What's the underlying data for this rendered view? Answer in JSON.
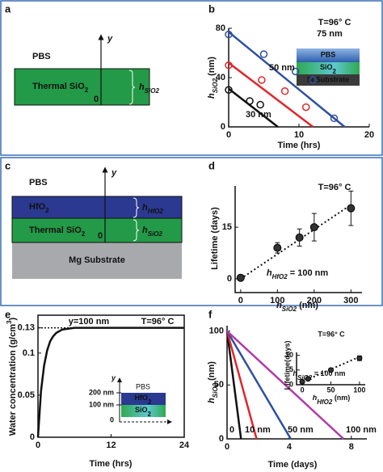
{
  "diagrams": [
    {
      "letter": "a",
      "pbs": "PBS",
      "layer": [
        "Thermal SiO",
        {
          "sub": "2"
        }
      ],
      "axis": "y",
      "origin": "0",
      "thickness": [
        "h",
        {
          "sub": "SiO2"
        }
      ]
    },
    {
      "letter": "c",
      "pbs": "PBS",
      "layers": [
        [
          "HfO",
          {
            "sub": "2"
          }
        ],
        [
          "Thermal SiO",
          {
            "sub": "2"
          }
        ]
      ],
      "substrate": "Mg Substrate",
      "axis": "y",
      "origin": "0",
      "thickness": [
        [
          "h",
          {
            "sub": "HfO2"
          }
        ],
        [
          "h",
          {
            "sub": "SiO2"
          }
        ]
      ]
    }
  ],
  "chart_data": [
    {
      "letter": "b",
      "type": "line",
      "x_label": "Time (hrs)",
      "y_label": [
        "h",
        {
          "sub": "SiO2"
        },
        " (nm)"
      ],
      "xlim": [
        0,
        20
      ],
      "xticks": [
        0,
        10,
        20
      ],
      "ylim": [
        0,
        80
      ],
      "yticks": [
        0,
        40,
        80
      ],
      "annotations": [
        "T=96° C"
      ],
      "series": [
        {
          "name": "75 nm",
          "color": "#2e4fa3",
          "x": [
            0,
            5,
            9.5,
            12,
            15
          ],
          "values": [
            75,
            59,
            45,
            38,
            7
          ],
          "fit_x": [
            0,
            16.5
          ],
          "fit_y": [
            77,
            0
          ]
        },
        {
          "name": "50 nm",
          "color": "#e0262b",
          "x": [
            0,
            4.7,
            8,
            11
          ],
          "values": [
            50,
            38,
            29,
            16
          ],
          "fit_x": [
            0,
            12
          ],
          "fit_y": [
            52,
            0
          ]
        },
        {
          "name": "30 nm",
          "color": "#111111",
          "x": [
            0,
            3,
            4.5
          ],
          "values": [
            30,
            21,
            18
          ],
          "fit_x": [
            0,
            7
          ],
          "fit_y": [
            31,
            0
          ]
        }
      ],
      "inset": {
        "layers": [
          "PBS",
          [
            "SiO",
            {
              "sub": "2"
            }
          ],
          "Si Substrate"
        ]
      }
    },
    {
      "letter": "d",
      "type": "scatter",
      "x_label": [
        "h",
        {
          "sub": "SiO2"
        },
        " (nm)"
      ],
      "y_label": "Lifetime (days)",
      "x": [
        0,
        100,
        160,
        200,
        300
      ],
      "values": [
        0.3,
        9,
        12,
        15,
        20.5
      ],
      "errors": [
        0,
        1.5,
        2.5,
        4,
        5
      ],
      "color": "#333333",
      "fit_x": [
        0,
        300
      ],
      "fit_y": [
        0,
        21.5
      ],
      "xlim": [
        -15,
        330
      ],
      "xticks": [
        0,
        100,
        200,
        300
      ],
      "ylim": [
        -4,
        27
      ],
      "yticks": [
        0,
        15
      ],
      "annotations": [
        "T=96° C",
        [
          "h",
          {
            "sub": "HfO2"
          },
          " = 100 nm"
        ]
      ]
    },
    {
      "letter": "e",
      "type": "line",
      "x_label": "Time (hrs)",
      "y_label": [
        "Water concentration (g/cm",
        {
          "sup": "3"
        },
        ")"
      ],
      "xlim": [
        0,
        24
      ],
      "xticks": [
        0,
        12,
        24
      ],
      "ylim": [
        0,
        0.145
      ],
      "yticks": [
        0,
        0.05,
        0.1,
        0.13
      ],
      "hline": 0.13,
      "annotations": [
        "T=96° C",
        "y=100  nm"
      ],
      "series": [
        {
          "color": "#111111",
          "x": [
            0,
            0.5,
            1,
            1.5,
            2,
            2.5,
            3,
            4,
            5,
            6,
            8,
            12,
            16,
            20,
            24
          ],
          "values": [
            0,
            0.055,
            0.085,
            0.103,
            0.114,
            0.12,
            0.124,
            0.128,
            0.129,
            0.13,
            0.13,
            0.13,
            0.13,
            0.13,
            0.13
          ]
        }
      ],
      "inset": {
        "pbs": "PBS",
        "hfo2": [
          "HfO",
          {
            "sub": "2"
          }
        ],
        "sio2": [
          "SiO",
          {
            "sub": "2"
          }
        ],
        "top": "200 nm",
        "mid": "100 nm",
        "origin": "0",
        "axis": "y"
      }
    },
    {
      "letter": "f",
      "type": "line",
      "x_label": "Time (days)",
      "y_label": [
        "h",
        {
          "sub": "SiO2"
        },
        " (nm)"
      ],
      "xlim": [
        0,
        9
      ],
      "xticks": [
        0,
        4,
        8
      ],
      "ylim": [
        0,
        105
      ],
      "yticks": [
        0,
        50,
        100
      ],
      "series": [
        {
          "name": "0",
          "color": "#111111",
          "x": [
            0,
            0.9
          ],
          "values": [
            100,
            0
          ]
        },
        {
          "name": "10 nm",
          "color": "#e0262b",
          "x": [
            0,
            1.9
          ],
          "values": [
            100,
            0
          ]
        },
        {
          "name": "50 nm",
          "color": "#2e4fa3",
          "x": [
            0,
            4.1
          ],
          "values": [
            100,
            0
          ]
        },
        {
          "name": "100 nm",
          "color": "#b23aa6",
          "x": [
            0,
            7.5
          ],
          "values": [
            100,
            0
          ]
        }
      ],
      "inset": {
        "type": "scatter",
        "x_label": [
          "h",
          {
            "sub": "HfO2"
          },
          " (nm)"
        ],
        "y_label": "Lifetime(days)",
        "x": [
          0,
          10,
          50,
          100
        ],
        "values": [
          1,
          2,
          5,
          9
        ],
        "errors": [
          0.3,
          0.3,
          0.5,
          0.8
        ],
        "color": "#333333",
        "fit_x": [
          0,
          100
        ],
        "fit_y": [
          1,
          9.5
        ],
        "xlim": [
          -10,
          110
        ],
        "xticks": [
          0,
          50,
          100
        ],
        "ylim": [
          0,
          11
        ],
        "yticks": [
          0,
          5,
          10
        ],
        "annotations": [
          "T=96° C",
          [
            "h",
            {
              "sub": "SiO2"
            },
            " = 100 nm"
          ]
        ]
      }
    }
  ]
}
